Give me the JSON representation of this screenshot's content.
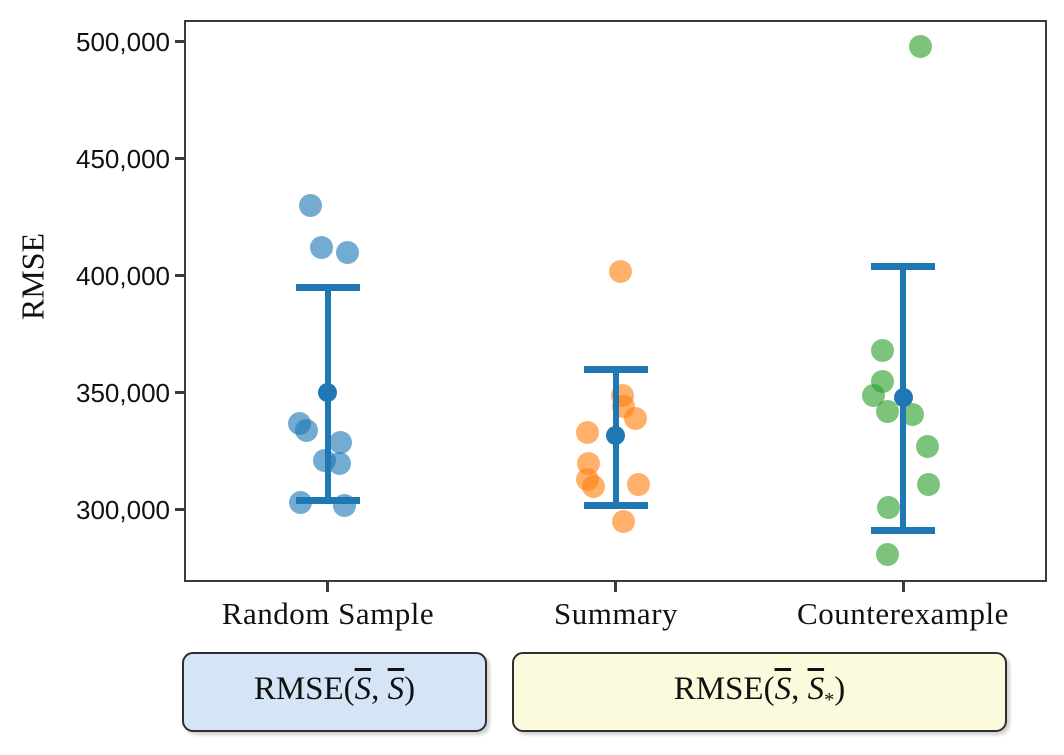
{
  "colors": {
    "background": "#ffffff",
    "axis": "#3a3a3a",
    "text": "#111111",
    "errorbar": "#1f77b4",
    "dot_blue": "rgba(31,119,180,0.62)",
    "dot_orange": "rgba(255,127,14,0.62)",
    "dot_green": "rgba(44,160,44,0.62)",
    "box_blue_fill": "#d5e5f6",
    "box_yellow_fill": "#fbfadc",
    "box_border": "#2f2f2f"
  },
  "chart_data": {
    "type": "scatter",
    "title": "",
    "xlabel": "",
    "ylabel": "RMSE",
    "ylim": [
      269200,
      509400
    ],
    "grid": false,
    "legend_position": "below",
    "errorbar_color": "#1f77b4",
    "errorbar_style": "mean plus-minus std, caps at both ends",
    "y_ticks": [
      {
        "value": 500000,
        "label": "500,000"
      },
      {
        "value": 450000,
        "label": "450,000"
      },
      {
        "value": 400000,
        "label": "400,000"
      },
      {
        "value": 350000,
        "label": "350,000"
      },
      {
        "value": 300000,
        "label": "300,000"
      }
    ],
    "categories": [
      "Random Sample",
      "Summary",
      "Counterexample"
    ],
    "series": [
      {
        "name": "Random Sample",
        "dot_color": "rgba(31,119,180,0.62)",
        "mean": 350000,
        "err_low": 304000,
        "err_high": 395000,
        "points": [
          {
            "y": 430000,
            "dx": -17
          },
          {
            "y": 412000,
            "dx": -6
          },
          {
            "y": 410000,
            "dx": 20
          },
          {
            "y": 337000,
            "dx": -28
          },
          {
            "y": 334000,
            "dx": -21
          },
          {
            "y": 329000,
            "dx": 13
          },
          {
            "y": 321000,
            "dx": -3
          },
          {
            "y": 320000,
            "dx": 12
          },
          {
            "y": 303000,
            "dx": -27
          },
          {
            "y": 302000,
            "dx": 17
          }
        ]
      },
      {
        "name": "Summary",
        "dot_color": "rgba(255,127,14,0.62)",
        "mean": 332000,
        "err_low": 302000,
        "err_high": 360000,
        "points": [
          {
            "y": 402000,
            "dx": 5
          },
          {
            "y": 349000,
            "dx": 7
          },
          {
            "y": 344000,
            "dx": 8
          },
          {
            "y": 339000,
            "dx": 20
          },
          {
            "y": 333000,
            "dx": -28
          },
          {
            "y": 320000,
            "dx": -27
          },
          {
            "y": 313000,
            "dx": -28
          },
          {
            "y": 311000,
            "dx": 23
          },
          {
            "y": 310000,
            "dx": -22
          },
          {
            "y": 295000,
            "dx": 8
          }
        ]
      },
      {
        "name": "Counterexample",
        "dot_color": "rgba(44,160,44,0.62)",
        "mean": 348000,
        "err_low": 291000,
        "err_high": 404000,
        "points": [
          {
            "y": 498000,
            "dx": 17
          },
          {
            "y": 368000,
            "dx": -21
          },
          {
            "y": 355000,
            "dx": -21
          },
          {
            "y": 349000,
            "dx": -30
          },
          {
            "y": 342000,
            "dx": -16
          },
          {
            "y": 341000,
            "dx": 9
          },
          {
            "y": 327000,
            "dx": 24
          },
          {
            "y": 311000,
            "dx": 25
          },
          {
            "y": 301000,
            "dx": -15
          },
          {
            "y": 281000,
            "dx": -16
          }
        ]
      }
    ]
  },
  "boxes": [
    {
      "name": "rmse-self-box",
      "fill": "#d5e5f6",
      "parts": {
        "pre": "RMSE(",
        "s1": "S",
        "sep": ", ",
        "s2": "S",
        "sub": "",
        "post": ")"
      }
    },
    {
      "name": "rmse-counterfactual-box",
      "fill": "#fbfadc",
      "parts": {
        "pre": "RMSE(",
        "s1": "S",
        "sep": ", ",
        "s2": "S",
        "sub": "*",
        "post": ")"
      }
    }
  ]
}
